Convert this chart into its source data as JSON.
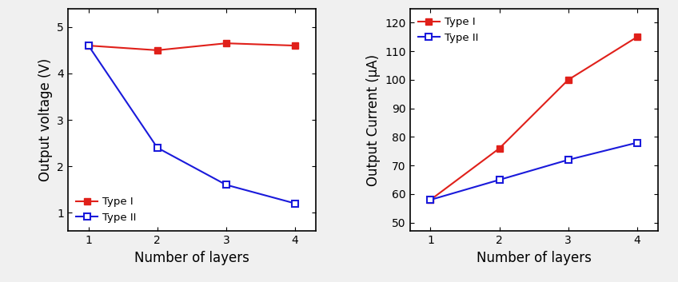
{
  "x": [
    1,
    2,
    3,
    4
  ],
  "voltage_type1": [
    4.6,
    4.5,
    4.65,
    4.6
  ],
  "voltage_type2": [
    4.6,
    2.4,
    1.6,
    1.2
  ],
  "current_type1": [
    58,
    76,
    100,
    115
  ],
  "current_type2": [
    58,
    65,
    72,
    78
  ],
  "color_type1": "#e0201a",
  "color_type2": "#1a1adb",
  "voltage_ylabel": "Output voltage (V)",
  "current_ylabel": "Output Current (μA)",
  "xlabel": "Number of layers",
  "legend_type1": "Type I",
  "legend_type2": "Type II",
  "voltage_ylim": [
    0.6,
    5.4
  ],
  "voltage_yticks": [
    1,
    2,
    3,
    4,
    5
  ],
  "current_ylim": [
    47,
    125
  ],
  "current_yticks": [
    50,
    60,
    70,
    80,
    90,
    100,
    110,
    120
  ],
  "xlim": [
    0.7,
    4.3
  ],
  "xticks": [
    1,
    2,
    3,
    4
  ],
  "bg_color": "#f0f0f0",
  "fig_width": 8.48,
  "fig_height": 3.53,
  "dpi": 100
}
